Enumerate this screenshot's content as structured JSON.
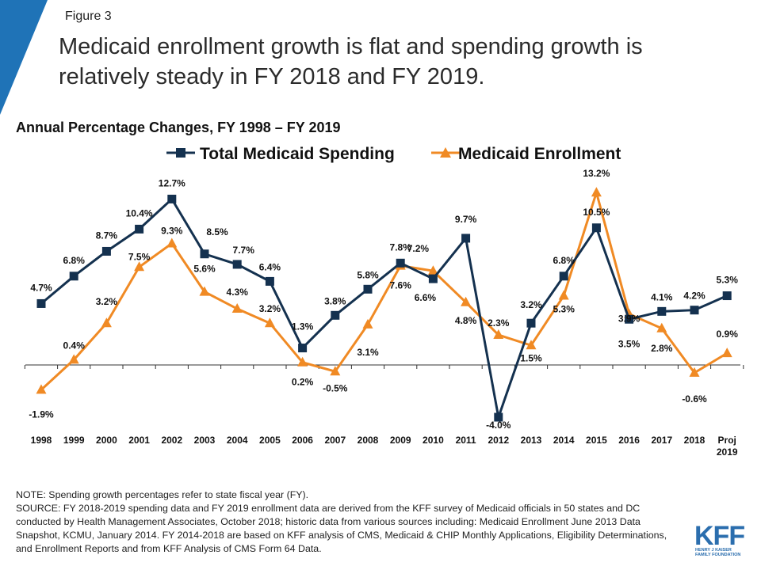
{
  "figure_label": "Figure 3",
  "headline": "Medicaid enrollment growth is flat and spending growth is relatively steady in FY 2018 and FY 2019.",
  "colors": {
    "spending": "#14314f",
    "enrollment": "#f08a24",
    "corner": "#1f73b7",
    "logo": "#2b6eae"
  },
  "chart_data": {
    "type": "line",
    "title": "Annual Percentage Changes, FY 1998 – FY 2019",
    "xlabel": "",
    "ylabel": "",
    "categories": [
      "1998",
      "1999",
      "2000",
      "2001",
      "2002",
      "2003",
      "2004",
      "2005",
      "2006",
      "2007",
      "2008",
      "2009",
      "2010",
      "2011",
      "2012",
      "2013",
      "2014",
      "2015",
      "2016",
      "2017",
      "2018",
      "Proj 2019"
    ],
    "ylim": [
      -5,
      14
    ],
    "grid": false,
    "legend_position": "top",
    "series": [
      {
        "name": "Total Medicaid Spending",
        "marker": "square",
        "color": "#14314f",
        "values": [
          4.7,
          6.8,
          8.7,
          10.4,
          12.7,
          8.5,
          7.7,
          6.4,
          1.3,
          3.8,
          5.8,
          7.8,
          6.6,
          9.7,
          -4.0,
          3.2,
          6.8,
          10.5,
          3.5,
          4.1,
          4.2,
          5.3
        ],
        "labels": [
          "4.7%",
          "6.8%",
          "8.7%",
          "10.4%",
          "12.7%",
          "8.5%",
          "7.7%",
          "6.4%",
          "1.3%",
          "3.8%",
          "5.8%",
          "7.8%",
          "6.6%",
          "9.7%",
          "-4.0%",
          "3.2%",
          "6.8%",
          "10.5%",
          "3.5%",
          "4.1%",
          "4.2%",
          "5.3%"
        ]
      },
      {
        "name": "Medicaid Enrollment",
        "marker": "triangle",
        "color": "#f08a24",
        "values": [
          -1.9,
          0.4,
          3.2,
          7.5,
          9.3,
          5.6,
          4.3,
          3.2,
          0.2,
          -0.5,
          3.1,
          7.6,
          7.2,
          4.8,
          2.3,
          1.5,
          5.3,
          13.2,
          3.9,
          2.8,
          -0.6,
          0.9
        ],
        "labels": [
          "-1.9%",
          "0.4%",
          "3.2%",
          "7.5%",
          "9.3%",
          "5.6%",
          "4.3%",
          "3.2%",
          "0.2%",
          "-0.5%",
          "3.1%",
          "7.6%",
          "7.2%",
          "4.8%",
          "2.3%",
          "1.5%",
          "5.3%",
          "13.2%",
          "3.9%",
          "2.8%",
          "-0.6%",
          "0.9%"
        ]
      }
    ]
  },
  "notes": {
    "note": "NOTE: Spending growth percentages refer to state fiscal year (FY).",
    "source": "SOURCE: FY 2018-2019 spending data and FY 2019 enrollment data are derived from the KFF survey of Medicaid officials in 50 states and DC conducted by Health Management Associates, October 2018; historic data from various sources including:  Medicaid Enrollment June 2013 Data Snapshot, KCMU, January 2014. FY 2014-2018 are based on KFF analysis of CMS, Medicaid & CHIP Monthly Applications, Eligibility Determinations, and Enrollment Reports and from KFF Analysis of CMS Form 64 Data."
  },
  "logo": {
    "text": "KFF",
    "sub1": "HENRY J KAISER",
    "sub2": "FAMILY FOUNDATION"
  }
}
